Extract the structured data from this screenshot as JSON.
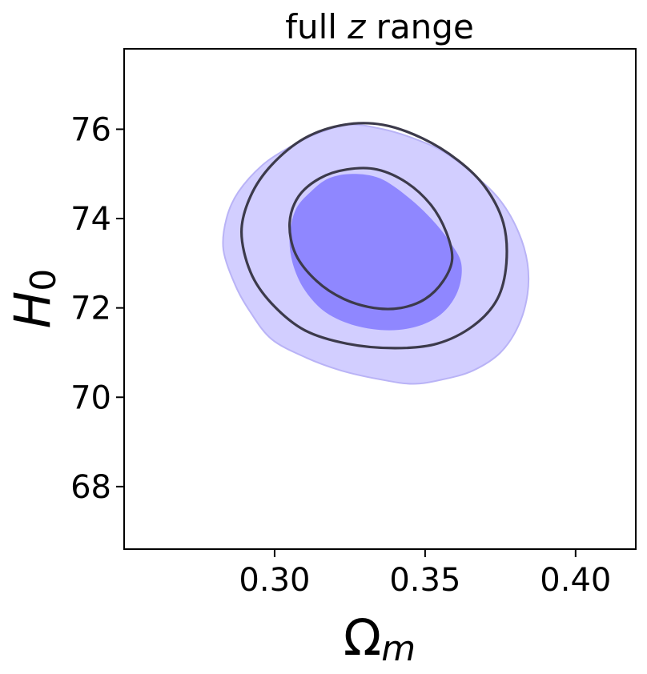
{
  "chart_data": {
    "type": "contour",
    "title_prefix": "full ",
    "title_math": "z",
    "title_suffix": " range",
    "xlabel_symbol": "Ω",
    "xlabel_sub": "m",
    "ylabel_symbol": "H",
    "ylabel_sub": "0",
    "xlim": [
      0.25,
      0.42
    ],
    "ylim": [
      66.6,
      77.8
    ],
    "xticks": [
      0.3,
      0.35,
      0.4
    ],
    "xtick_labels": [
      "0.30",
      "0.35",
      "0.40"
    ],
    "yticks": [
      68,
      70,
      72,
      74,
      76
    ],
    "ytick_labels": [
      "68",
      "70",
      "72",
      "74",
      "76"
    ],
    "grid": false,
    "legend": "none",
    "series": [
      {
        "style": "filled",
        "color_outer": "#d2ceff",
        "color_inner": "#8f87ff",
        "edge_color": "#b9b3f6",
        "contours": [
          {
            "level": "outer",
            "points": [
              [
                0.283,
                73.3
              ],
              [
                0.284,
                74.0
              ],
              [
                0.288,
                74.6
              ],
              [
                0.296,
                75.2
              ],
              [
                0.305,
                75.6
              ],
              [
                0.314,
                75.9
              ],
              [
                0.325,
                76.1
              ],
              [
                0.336,
                76.0
              ],
              [
                0.346,
                75.8
              ],
              [
                0.356,
                75.5
              ],
              [
                0.366,
                75.0
              ],
              [
                0.375,
                74.4
              ],
              [
                0.381,
                73.7
              ],
              [
                0.384,
                73.0
              ],
              [
                0.384,
                72.3
              ],
              [
                0.381,
                71.6
              ],
              [
                0.375,
                71.0
              ],
              [
                0.366,
                70.6
              ],
              [
                0.356,
                70.4
              ],
              [
                0.346,
                70.3
              ],
              [
                0.335,
                70.4
              ],
              [
                0.322,
                70.6
              ],
              [
                0.31,
                70.9
              ],
              [
                0.299,
                71.3
              ],
              [
                0.292,
                71.9
              ],
              [
                0.287,
                72.5
              ]
            ]
          },
          {
            "level": "inner",
            "points": [
              [
                0.305,
                73.6
              ],
              [
                0.307,
                74.2
              ],
              [
                0.312,
                74.6
              ],
              [
                0.318,
                74.9
              ],
              [
                0.326,
                75.0
              ],
              [
                0.335,
                74.9
              ],
              [
                0.344,
                74.5
              ],
              [
                0.352,
                74.0
              ],
              [
                0.358,
                73.5
              ],
              [
                0.362,
                73.0
              ],
              [
                0.361,
                72.4
              ],
              [
                0.356,
                71.9
              ],
              [
                0.348,
                71.6
              ],
              [
                0.338,
                71.5
              ],
              [
                0.327,
                71.6
              ],
              [
                0.317,
                71.9
              ],
              [
                0.31,
                72.4
              ],
              [
                0.306,
                73.0
              ]
            ]
          }
        ]
      },
      {
        "style": "line",
        "color": "#3c3a4b",
        "contours": [
          {
            "level": "outer",
            "points": [
              [
                0.289,
                73.7
              ],
              [
                0.292,
                74.5
              ],
              [
                0.299,
                75.2
              ],
              [
                0.31,
                75.8
              ],
              [
                0.323,
                76.1
              ],
              [
                0.336,
                76.1
              ],
              [
                0.349,
                75.8
              ],
              [
                0.361,
                75.3
              ],
              [
                0.37,
                74.7
              ],
              [
                0.376,
                73.9
              ],
              [
                0.377,
                73.0
              ],
              [
                0.374,
                72.2
              ],
              [
                0.366,
                71.6
              ],
              [
                0.354,
                71.2
              ],
              [
                0.34,
                71.1
              ],
              [
                0.324,
                71.2
              ],
              [
                0.31,
                71.5
              ],
              [
                0.299,
                72.1
              ],
              [
                0.292,
                72.8
              ]
            ]
          },
          {
            "level": "inner",
            "points": [
              [
                0.305,
                73.9
              ],
              [
                0.308,
                74.5
              ],
              [
                0.315,
                74.9
              ],
              [
                0.324,
                75.1
              ],
              [
                0.334,
                75.1
              ],
              [
                0.344,
                74.8
              ],
              [
                0.352,
                74.3
              ],
              [
                0.357,
                73.7
              ],
              [
                0.359,
                73.1
              ],
              [
                0.356,
                72.6
              ],
              [
                0.35,
                72.2
              ],
              [
                0.342,
                72.0
              ],
              [
                0.333,
                72.0
              ],
              [
                0.323,
                72.2
              ],
              [
                0.314,
                72.6
              ],
              [
                0.307,
                73.2
              ]
            ]
          }
        ]
      }
    ]
  }
}
